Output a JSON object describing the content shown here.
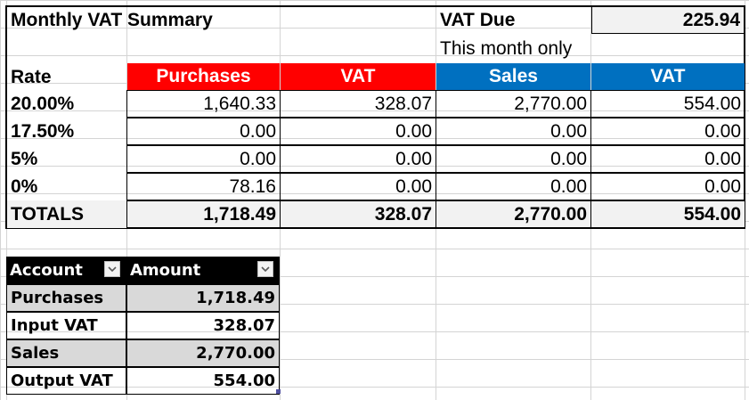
{
  "summary": {
    "title": "Monthly VAT Summary",
    "vat_due_label": "VAT Due",
    "vat_due_value": "225.94",
    "note": "This month only"
  },
  "rates_table": {
    "headers": {
      "rate": "Rate",
      "purchases": "Purchases",
      "purchases_vat": "VAT",
      "sales": "Sales",
      "sales_vat": "VAT"
    },
    "rows": [
      {
        "rate": "20.00%",
        "purchases": "1,640.33",
        "purchases_vat": "328.07",
        "sales": "2,770.00",
        "sales_vat": "554.00"
      },
      {
        "rate": "17.50%",
        "purchases": "0.00",
        "purchases_vat": "0.00",
        "sales": "0.00",
        "sales_vat": "0.00"
      },
      {
        "rate": "5%",
        "purchases": "0.00",
        "purchases_vat": "0.00",
        "sales": "0.00",
        "sales_vat": "0.00"
      },
      {
        "rate": "0%",
        "purchases": "78.16",
        "purchases_vat": "0.00",
        "sales": "0.00",
        "sales_vat": "0.00"
      }
    ],
    "totals": {
      "label": "TOTALS",
      "purchases": "1,718.49",
      "purchases_vat": "328.07",
      "sales": "2,770.00",
      "sales_vat": "554.00"
    }
  },
  "accounts_table": {
    "headers": {
      "account": "Account",
      "amount": "Amount"
    },
    "rows": [
      {
        "account": "Purchases",
        "amount": "1,718.49"
      },
      {
        "account": "Input VAT",
        "amount": "328.07"
      },
      {
        "account": "Sales",
        "amount": "2,770.00"
      },
      {
        "account": "Output VAT",
        "amount": "554.00"
      }
    ]
  },
  "colors": {
    "purchases_header": "#ff0000",
    "sales_header": "#0070c0",
    "table_header": "#000000",
    "band_row": "#d9d9d9",
    "totals_fill": "#f2f2f2"
  },
  "icons": {
    "filter_dropdown": "chevron-down-icon"
  }
}
